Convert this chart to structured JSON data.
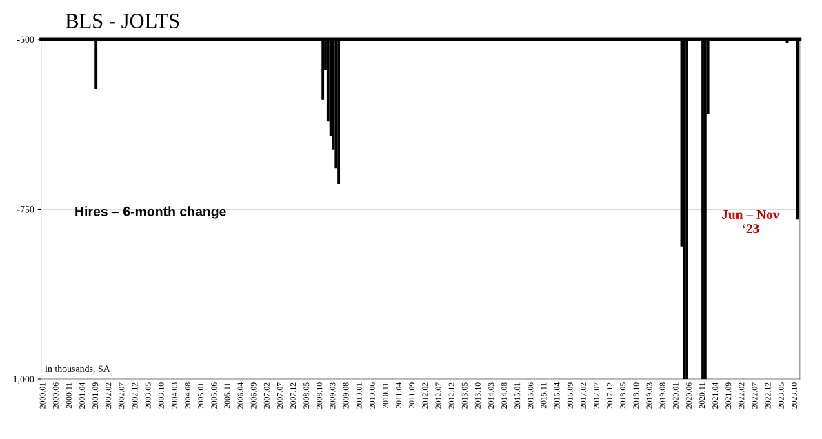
{
  "chart_data": {
    "type": "bar",
    "title": "BLS - JOLTS",
    "annotations": [
      "Hires – 6-month change",
      "Jun – Nov\n‘23",
      "in thousands, SA"
    ],
    "categories": [
      "2000.01",
      null,
      null,
      null,
      null,
      "2000.06",
      null,
      null,
      null,
      null,
      "2000.11",
      null,
      null,
      null,
      null,
      "2001.04",
      null,
      null,
      null,
      null,
      "2001.09",
      null,
      null,
      null,
      null,
      "2002.02",
      null,
      null,
      null,
      null,
      "2002.07",
      null,
      null,
      null,
      null,
      "2002.12",
      null,
      null,
      null,
      null,
      "2003.05",
      null,
      null,
      null,
      null,
      "2003.10",
      null,
      null,
      null,
      null,
      "2004.03",
      null,
      null,
      null,
      null,
      "2004.08",
      null,
      null,
      null,
      null,
      "2005.01",
      null,
      null,
      null,
      null,
      "2005.06",
      null,
      null,
      null,
      null,
      "2005.11",
      null,
      null,
      null,
      null,
      "2006.04",
      null,
      null,
      null,
      null,
      "2006.09",
      null,
      null,
      null,
      null,
      "2007.02",
      null,
      null,
      null,
      null,
      "2007.07",
      null,
      null,
      null,
      null,
      "2007.12",
      null,
      null,
      null,
      null,
      "2008.05",
      null,
      null,
      null,
      null,
      "2008.10",
      null,
      null,
      null,
      null,
      "2009.03",
      null,
      null,
      null,
      null,
      "2009.08",
      null,
      null,
      null,
      null,
      "2010.01",
      null,
      null,
      null,
      null,
      "2010.06",
      null,
      null,
      null,
      null,
      "2010.11",
      null,
      null,
      null,
      null,
      "2011.04",
      null,
      null,
      null,
      null,
      "2011.09",
      null,
      null,
      null,
      null,
      "2012.02",
      null,
      null,
      null,
      null,
      "2012.07",
      null,
      null,
      null,
      null,
      "2012.12",
      null,
      null,
      null,
      null,
      "2013.05",
      null,
      null,
      null,
      null,
      "2013.10",
      null,
      null,
      null,
      null,
      "2014.03",
      null,
      null,
      null,
      null,
      "2014.08",
      null,
      null,
      null,
      null,
      "2015.01",
      null,
      null,
      null,
      null,
      "2015.06",
      null,
      null,
      null,
      null,
      "2015.11",
      null,
      null,
      null,
      null,
      "2016.04",
      null,
      null,
      null,
      null,
      "2016.09",
      null,
      null,
      null,
      null,
      "2017.02",
      null,
      null,
      null,
      null,
      "2017.07",
      null,
      null,
      null,
      null,
      "2017.12",
      null,
      null,
      null,
      null,
      "2018.05",
      null,
      null,
      null,
      null,
      "2018.10",
      null,
      null,
      null,
      null,
      "2019.03",
      null,
      null,
      null,
      null,
      "2019.08",
      null,
      null,
      null,
      null,
      "2020.01",
      null,
      null,
      null,
      null,
      "2020.06",
      null,
      null,
      null,
      null,
      "2020.11",
      null,
      null,
      null,
      null,
      "2021.04",
      null,
      null,
      null,
      null,
      "2021.09",
      null,
      null,
      null,
      null,
      "2022.02",
      null,
      null,
      null,
      null,
      "2022.07",
      null,
      null,
      null,
      null,
      "2022.12",
      null,
      null,
      null,
      null,
      "2023.05",
      null,
      null,
      null,
      null,
      "2023.10",
      null
    ],
    "values": [
      null,
      null,
      null,
      null,
      null,
      null,
      null,
      null,
      null,
      null,
      null,
      null,
      null,
      null,
      null,
      null,
      null,
      null,
      null,
      null,
      -573,
      null,
      null,
      null,
      null,
      null,
      null,
      null,
      null,
      null,
      null,
      null,
      null,
      null,
      null,
      null,
      null,
      null,
      null,
      null,
      null,
      null,
      null,
      null,
      null,
      null,
      null,
      null,
      null,
      null,
      null,
      null,
      null,
      null,
      null,
      null,
      null,
      null,
      null,
      null,
      null,
      null,
      null,
      null,
      null,
      null,
      null,
      null,
      null,
      null,
      null,
      null,
      null,
      null,
      null,
      null,
      null,
      null,
      null,
      null,
      null,
      null,
      null,
      null,
      null,
      null,
      null,
      null,
      null,
      null,
      null,
      null,
      null,
      null,
      null,
      null,
      null,
      null,
      null,
      null,
      null,
      null,
      null,
      null,
      null,
      null,
      -589,
      -545,
      -621,
      -642,
      -662,
      -690,
      -713,
      null,
      null,
      null,
      null,
      null,
      null,
      null,
      null,
      null,
      null,
      null,
      null,
      null,
      null,
      null,
      null,
      null,
      null,
      null,
      null,
      null,
      null,
      null,
      null,
      null,
      null,
      null,
      null,
      null,
      null,
      null,
      null,
      null,
      null,
      null,
      null,
      null,
      null,
      null,
      null,
      null,
      null,
      null,
      null,
      null,
      null,
      null,
      null,
      null,
      null,
      null,
      null,
      null,
      null,
      null,
      null,
      null,
      null,
      null,
      null,
      null,
      null,
      null,
      null,
      null,
      null,
      null,
      null,
      null,
      null,
      null,
      null,
      null,
      null,
      null,
      null,
      null,
      null,
      null,
      null,
      null,
      null,
      null,
      null,
      null,
      null,
      null,
      null,
      null,
      null,
      null,
      null,
      null,
      null,
      null,
      null,
      null,
      null,
      null,
      null,
      null,
      null,
      null,
      null,
      null,
      null,
      null,
      null,
      null,
      null,
      null,
      null,
      null,
      null,
      null,
      null,
      null,
      null,
      null,
      null,
      null,
      null,
      null,
      null,
      null,
      null,
      null,
      null,
      null,
      -805,
      -1000,
      -1000,
      null,
      null,
      null,
      null,
      null,
      -1000,
      -1000,
      -610,
      null,
      null,
      null,
      null,
      null,
      null,
      null,
      null,
      null,
      null,
      null,
      null,
      null,
      null,
      null,
      null,
      null,
      null,
      null,
      null,
      null,
      null,
      null,
      null,
      null,
      null,
      null,
      null,
      null,
      -505,
      null,
      null,
      null,
      -765
    ],
    "color": "#000000",
    "ylim": [
      -1000,
      -500
    ],
    "yticks": [
      {
        "value": -1000,
        "label": "-1,000"
      },
      -750,
      -500
    ],
    "grid": "y"
  }
}
